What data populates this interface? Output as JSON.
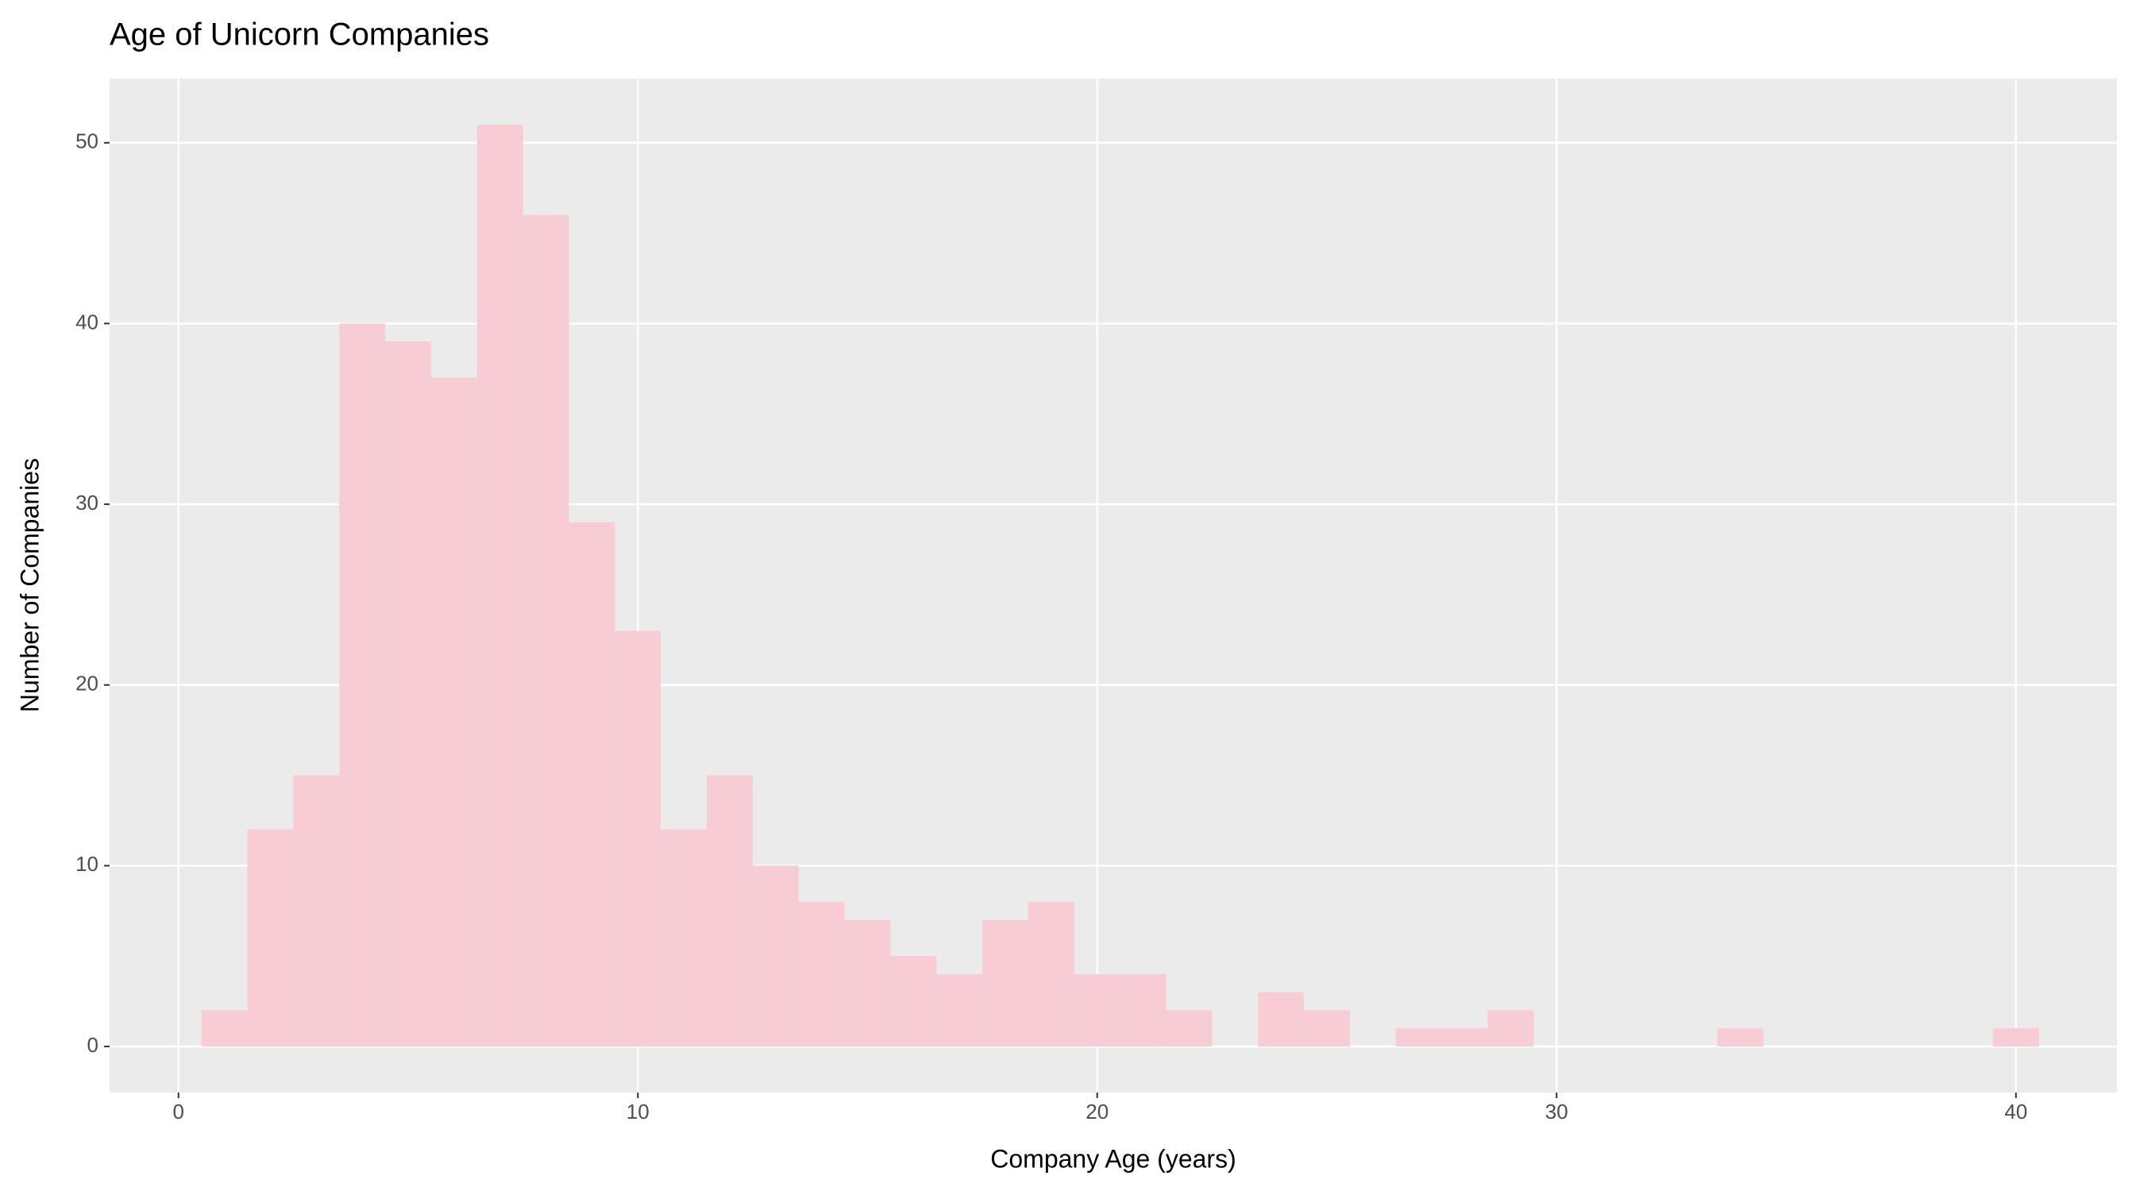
{
  "chart_data": {
    "type": "histogram",
    "title": "Age of Unicorn Companies",
    "x_label": "Company Age (years)",
    "y_label": "Number of Companies",
    "bins": [
      0.5,
      1.5,
      2.5,
      3.5,
      4.5,
      5.5,
      6.5,
      7.5,
      8.5,
      9.5,
      10.5,
      11.5,
      12.5,
      13.5,
      14.5,
      15.5,
      16.5,
      17.5,
      18.5,
      19.5,
      20.5,
      21.5,
      22.5,
      23.5,
      24.5,
      25.5,
      26.5,
      27.5,
      28.5,
      29.5,
      30.5,
      31.5,
      32.5,
      33.5,
      34.5,
      35.5,
      36.5,
      37.5,
      38.5,
      39.5,
      40.5
    ],
    "values": [
      2,
      12,
      15,
      40,
      39,
      37,
      51,
      46,
      29,
      23,
      12,
      15,
      10,
      8,
      7,
      5,
      4,
      7,
      8,
      4,
      4,
      2,
      0,
      3,
      2,
      0,
      1,
      1,
      2,
      0,
      0,
      0,
      0,
      1,
      0,
      0,
      0,
      0,
      0,
      1
    ],
    "color": "#f7ccd4",
    "xlim": [
      -1.5,
      42.2
    ],
    "xticks": [
      0,
      10,
      20,
      30,
      40
    ],
    "ylim": [
      -2.55,
      53.55
    ],
    "yticks": [
      0,
      10,
      20,
      30,
      40,
      50
    ],
    "grid": true
  }
}
